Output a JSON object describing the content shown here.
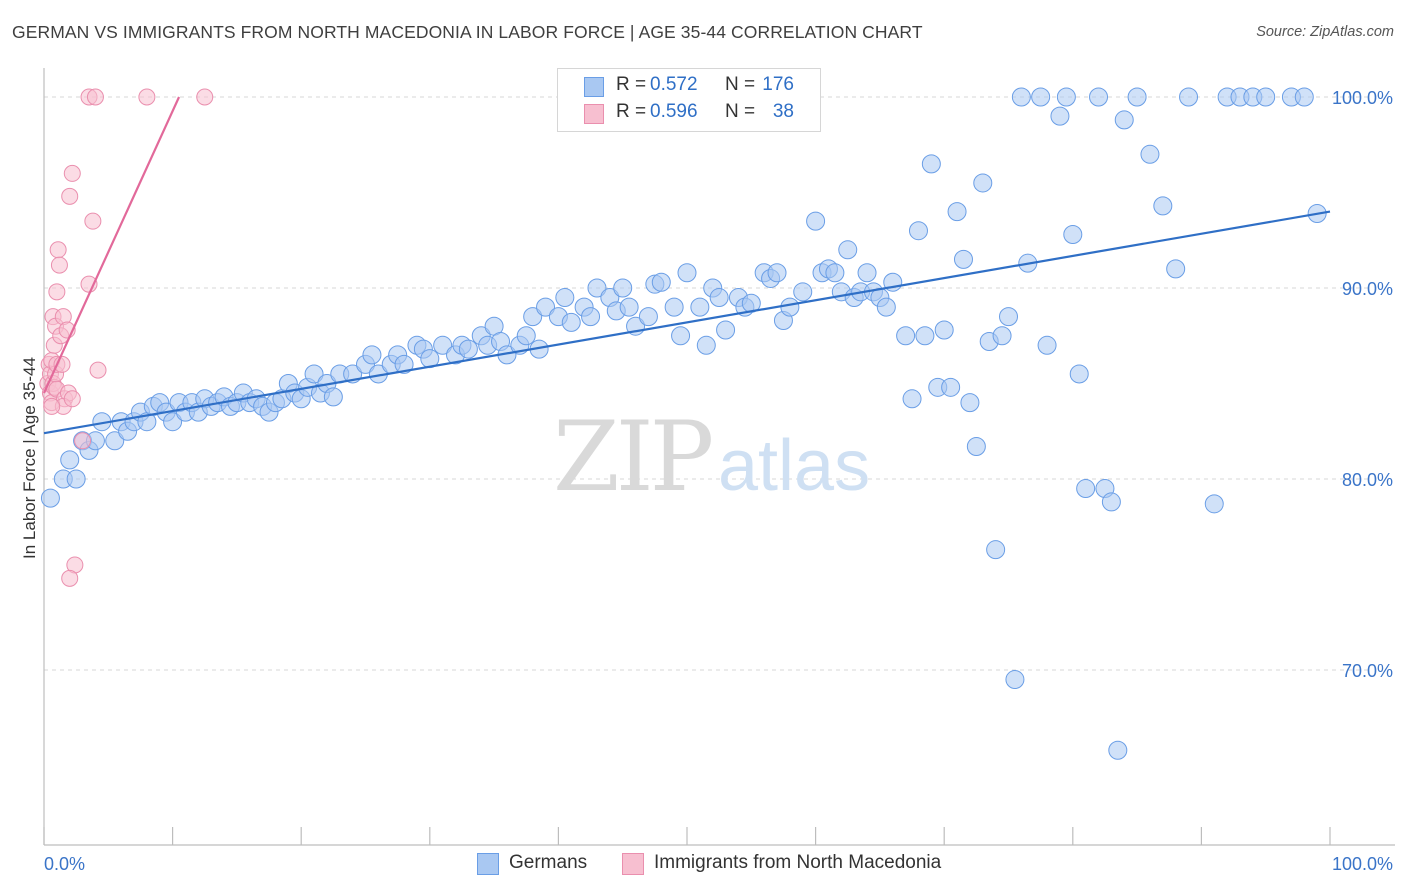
{
  "title": "GERMAN VS IMMIGRANTS FROM NORTH MACEDONIA IN LABOR FORCE | AGE 35-44 CORRELATION CHART",
  "source": "Source: ZipAtlas.com",
  "watermark": {
    "part1": "ZIP",
    "part2": "atlas"
  },
  "colors": {
    "blue_fill": "#a9c8f2",
    "blue_stroke": "#6a9ee6",
    "blue_line": "#2f6fc6",
    "pink_fill": "#f7bfd0",
    "pink_stroke": "#ea8fae",
    "pink_line": "#e2699a"
  },
  "legend": {
    "rows": [
      {
        "r_label": "R =",
        "r_value": "0.572",
        "n_label": "N =",
        "n_value": "176"
      },
      {
        "r_label": "R =",
        "r_value": "0.596",
        "n_label": "N =",
        "n_value": "38"
      }
    ]
  },
  "bottom_legend": [
    "Germans",
    "Immigrants from North Macedonia"
  ],
  "chart_data": {
    "type": "scatter",
    "title": "GERMAN VS IMMIGRANTS FROM NORTH MACEDONIA IN LABOR FORCE | AGE 35-44 CORRELATION CHART",
    "ylabel": "In Labor Force | Age 35-44",
    "xlabel": "",
    "xlim": [
      0,
      100
    ],
    "ylim": [
      60,
      102
    ],
    "x_tick_labels": [
      "0.0%",
      "100.0%"
    ],
    "y_ticks": [
      70,
      80,
      90,
      100
    ],
    "y_tick_labels": [
      "70.0%",
      "80.0%",
      "90.0%",
      "100.0%"
    ],
    "grid": true,
    "series": [
      {
        "name": "Germans",
        "r": 0.572,
        "n": 176,
        "trend": {
          "x": [
            0,
            100
          ],
          "y": [
            82.4,
            94.0
          ]
        },
        "points": [
          [
            0.5,
            79
          ],
          [
            1.5,
            80
          ],
          [
            2,
            81
          ],
          [
            2.5,
            80
          ],
          [
            3,
            82
          ],
          [
            3.5,
            81.5
          ],
          [
            4,
            82
          ],
          [
            4.5,
            83
          ],
          [
            5.5,
            82
          ],
          [
            6,
            83
          ],
          [
            6.5,
            82.5
          ],
          [
            7,
            83
          ],
          [
            7.5,
            83.5
          ],
          [
            8,
            83
          ],
          [
            8.5,
            83.8
          ],
          [
            9,
            84
          ],
          [
            9.5,
            83.5
          ],
          [
            10,
            83
          ],
          [
            10.5,
            84
          ],
          [
            11,
            83.5
          ],
          [
            11.5,
            84
          ],
          [
            12,
            83.5
          ],
          [
            12.5,
            84.2
          ],
          [
            13,
            83.8
          ],
          [
            13.5,
            84
          ],
          [
            14,
            84.3
          ],
          [
            14.5,
            83.8
          ],
          [
            15,
            84
          ],
          [
            15.5,
            84.5
          ],
          [
            16,
            84
          ],
          [
            16.5,
            84.2
          ],
          [
            17,
            83.8
          ],
          [
            17.5,
            83.5
          ],
          [
            18,
            84
          ],
          [
            18.5,
            84.2
          ],
          [
            19,
            85
          ],
          [
            19.5,
            84.5
          ],
          [
            20,
            84.2
          ],
          [
            20.5,
            84.8
          ],
          [
            21,
            85.5
          ],
          [
            21.5,
            84.5
          ],
          [
            22,
            85
          ],
          [
            22.5,
            84.3
          ],
          [
            23,
            85.5
          ],
          [
            24,
            85.5
          ],
          [
            25,
            86
          ],
          [
            25.5,
            86.5
          ],
          [
            26,
            85.5
          ],
          [
            27,
            86
          ],
          [
            27.5,
            86.5
          ],
          [
            28,
            86
          ],
          [
            29,
            87
          ],
          [
            29.5,
            86.8
          ],
          [
            30,
            86.3
          ],
          [
            31,
            87
          ],
          [
            32,
            86.5
          ],
          [
            32.5,
            87
          ],
          [
            33,
            86.8
          ],
          [
            34,
            87.5
          ],
          [
            34.5,
            87
          ],
          [
            35,
            88
          ],
          [
            35.5,
            87.2
          ],
          [
            36,
            86.5
          ],
          [
            37,
            87
          ],
          [
            37.5,
            87.5
          ],
          [
            38,
            88.5
          ],
          [
            38.5,
            86.8
          ],
          [
            39,
            89
          ],
          [
            40,
            88.5
          ],
          [
            40.5,
            89.5
          ],
          [
            41,
            88.2
          ],
          [
            42,
            89
          ],
          [
            42.5,
            88.5
          ],
          [
            43,
            90
          ],
          [
            44,
            89.5
          ],
          [
            44.5,
            88.8
          ],
          [
            45,
            90
          ],
          [
            45.5,
            89
          ],
          [
            46,
            88
          ],
          [
            47,
            88.5
          ],
          [
            47.5,
            90.2
          ],
          [
            48,
            90.3
          ],
          [
            49,
            89
          ],
          [
            49.5,
            87.5
          ],
          [
            50,
            90.8
          ],
          [
            51,
            89
          ],
          [
            51.5,
            87
          ],
          [
            52,
            90
          ],
          [
            52.5,
            89.5
          ],
          [
            53,
            87.8
          ],
          [
            54,
            89.5
          ],
          [
            54.5,
            89
          ],
          [
            55,
            89.2
          ],
          [
            56,
            90.8
          ],
          [
            56.5,
            90.5
          ],
          [
            57,
            90.8
          ],
          [
            57.5,
            88.3
          ],
          [
            58,
            89
          ],
          [
            59,
            89.8
          ],
          [
            60,
            93.5
          ],
          [
            60.5,
            90.8
          ],
          [
            61,
            91
          ],
          [
            61.5,
            90.8
          ],
          [
            62,
            89.8
          ],
          [
            62.5,
            92
          ],
          [
            63,
            89.5
          ],
          [
            63.5,
            89.8
          ],
          [
            64,
            90.8
          ],
          [
            64.5,
            89.8
          ],
          [
            65,
            89.5
          ],
          [
            65.5,
            89
          ],
          [
            66,
            90.3
          ],
          [
            67,
            87.5
          ],
          [
            67.5,
            84.2
          ],
          [
            68,
            93
          ],
          [
            68.5,
            87.5
          ],
          [
            69,
            96.5
          ],
          [
            69.5,
            84.8
          ],
          [
            70,
            87.8
          ],
          [
            70.5,
            84.8
          ],
          [
            71,
            94
          ],
          [
            71.5,
            91.5
          ],
          [
            72,
            84
          ],
          [
            72.5,
            81.7
          ],
          [
            73,
            95.5
          ],
          [
            73.5,
            87.2
          ],
          [
            74,
            76.3
          ],
          [
            74.5,
            87.5
          ],
          [
            75,
            88.5
          ],
          [
            75.5,
            69.5
          ],
          [
            76,
            100
          ],
          [
            76.5,
            91.3
          ],
          [
            77.5,
            100
          ],
          [
            78,
            87
          ],
          [
            79,
            99
          ],
          [
            79.5,
            100
          ],
          [
            80,
            92.8
          ],
          [
            80.5,
            85.5
          ],
          [
            81,
            79.5
          ],
          [
            82,
            100
          ],
          [
            82.5,
            79.5
          ],
          [
            83,
            78.8
          ],
          [
            83.5,
            65.8
          ],
          [
            84,
            98.8
          ],
          [
            85,
            100
          ],
          [
            86,
            97
          ],
          [
            87,
            94.3
          ],
          [
            88,
            91
          ],
          [
            89,
            100
          ],
          [
            91,
            78.7
          ],
          [
            92,
            100
          ],
          [
            93,
            100
          ],
          [
            94,
            100
          ],
          [
            95,
            100
          ],
          [
            97,
            100
          ],
          [
            98,
            100
          ],
          [
            99,
            93.9
          ]
        ]
      },
      {
        "name": "Immigrants from North Macedonia",
        "r": 0.596,
        "n": 38,
        "trend": {
          "x": [
            0,
            10.5
          ],
          "y": [
            84.5,
            100
          ]
        },
        "points": [
          [
            0.3,
            85
          ],
          [
            0.4,
            86
          ],
          [
            0.5,
            84.5
          ],
          [
            0.5,
            85.5
          ],
          [
            0.6,
            86.2
          ],
          [
            0.6,
            84
          ],
          [
            0.7,
            88.5
          ],
          [
            0.7,
            85
          ],
          [
            0.8,
            87
          ],
          [
            0.8,
            84.8
          ],
          [
            0.9,
            88
          ],
          [
            0.9,
            85.5
          ],
          [
            1,
            89.8
          ],
          [
            1,
            86
          ],
          [
            1,
            84.7
          ],
          [
            1.1,
            92
          ],
          [
            1.2,
            91.2
          ],
          [
            1.3,
            87.5
          ],
          [
            1.4,
            86
          ],
          [
            1.5,
            88.5
          ],
          [
            1.6,
            84.2
          ],
          [
            1.8,
            87.8
          ],
          [
            1.9,
            84.5
          ],
          [
            2,
            94.8
          ],
          [
            2.2,
            96
          ],
          [
            2.4,
            75.5
          ],
          [
            2,
            74.8
          ],
          [
            3,
            82
          ],
          [
            3.5,
            90.2
          ],
          [
            3.8,
            93.5
          ],
          [
            4.2,
            85.7
          ],
          [
            3.5,
            100
          ],
          [
            4,
            100
          ],
          [
            8,
            100
          ],
          [
            12.5,
            100
          ],
          [
            1.5,
            83.8
          ],
          [
            2.2,
            84.2
          ],
          [
            0.6,
            83.8
          ]
        ]
      }
    ]
  }
}
